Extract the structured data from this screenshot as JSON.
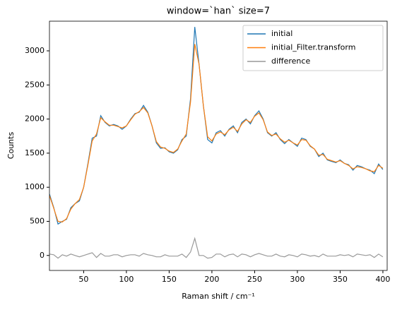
{
  "chart_data": {
    "type": "line",
    "title": "window=`han` size=7",
    "xlabel": "Raman shift / cm⁻¹",
    "ylabel": "Counts",
    "x": [
      10,
      15,
      20,
      25,
      30,
      35,
      40,
      45,
      50,
      55,
      60,
      65,
      70,
      75,
      80,
      85,
      90,
      95,
      100,
      105,
      110,
      115,
      120,
      125,
      130,
      135,
      140,
      145,
      150,
      155,
      160,
      165,
      170,
      175,
      180,
      185,
      190,
      195,
      200,
      205,
      210,
      215,
      220,
      225,
      230,
      235,
      240,
      245,
      250,
      255,
      260,
      265,
      270,
      275,
      280,
      285,
      290,
      295,
      300,
      305,
      310,
      315,
      320,
      325,
      330,
      335,
      340,
      345,
      350,
      355,
      360,
      365,
      370,
      375,
      380,
      385,
      390,
      395,
      400
    ],
    "series": [
      {
        "name": "initial",
        "color": "#1f77b4",
        "values": [
          900,
          700,
          460,
          500,
          530,
          700,
          760,
          800,
          1000,
          1350,
          1720,
          1750,
          2050,
          1950,
          1900,
          1920,
          1900,
          1850,
          1900,
          2000,
          2080,
          2100,
          2200,
          2100,
          1900,
          1650,
          1570,
          1580,
          1520,
          1500,
          1550,
          1700,
          1750,
          2300,
          3350,
          2800,
          2200,
          1700,
          1650,
          1800,
          1830,
          1750,
          1850,
          1900,
          1800,
          1950,
          2000,
          1930,
          2050,
          2120,
          2000,
          1800,
          1750,
          1800,
          1700,
          1640,
          1700,
          1650,
          1600,
          1720,
          1700,
          1600,
          1560,
          1450,
          1500,
          1400,
          1380,
          1360,
          1400,
          1350,
          1330,
          1250,
          1320,
          1300,
          1270,
          1250,
          1200,
          1340,
          1260
        ]
      },
      {
        "name": "initial_Filter.transform",
        "color": "#ff7f0e",
        "values": [
          880,
          690,
          500,
          490,
          540,
          680,
          760,
          820,
          1000,
          1330,
          1680,
          1780,
          2020,
          1960,
          1910,
          1910,
          1890,
          1870,
          1900,
          1990,
          2070,
          2110,
          2170,
          2090,
          1900,
          1670,
          1590,
          1570,
          1530,
          1510,
          1560,
          1680,
          1780,
          2250,
          3100,
          2800,
          2200,
          1740,
          1680,
          1780,
          1810,
          1770,
          1840,
          1880,
          1820,
          1930,
          1990,
          1950,
          2040,
          2090,
          1990,
          1810,
          1760,
          1780,
          1710,
          1660,
          1690,
          1650,
          1620,
          1700,
          1690,
          1610,
          1560,
          1470,
          1480,
          1410,
          1390,
          1370,
          1390,
          1350,
          1320,
          1270,
          1300,
          1290,
          1270,
          1240,
          1230,
          1320,
          1280
        ]
      },
      {
        "name": "difference",
        "color": "#999999",
        "values": [
          20,
          10,
          -40,
          10,
          -10,
          20,
          0,
          -20,
          0,
          20,
          40,
          -30,
          30,
          -10,
          -10,
          10,
          10,
          -20,
          0,
          10,
          10,
          -10,
          30,
          10,
          0,
          -20,
          -20,
          10,
          -10,
          -10,
          -10,
          20,
          -30,
          50,
          250,
          0,
          0,
          -40,
          -30,
          20,
          20,
          -20,
          10,
          20,
          -20,
          20,
          10,
          -20,
          10,
          30,
          10,
          -10,
          -10,
          20,
          -10,
          -20,
          10,
          0,
          -20,
          20,
          10,
          -10,
          0,
          -20,
          20,
          -10,
          -10,
          -10,
          10,
          0,
          10,
          -20,
          20,
          10,
          0,
          10,
          -30,
          20,
          -20
        ]
      }
    ],
    "xlim": [
      10,
      405
    ],
    "ylim": [
      -220,
      3435
    ],
    "xticks": [
      50,
      100,
      150,
      200,
      250,
      300,
      350,
      400
    ],
    "yticks": [
      0,
      500,
      1000,
      1500,
      2000,
      2500,
      3000
    ],
    "legend": "upper right"
  }
}
